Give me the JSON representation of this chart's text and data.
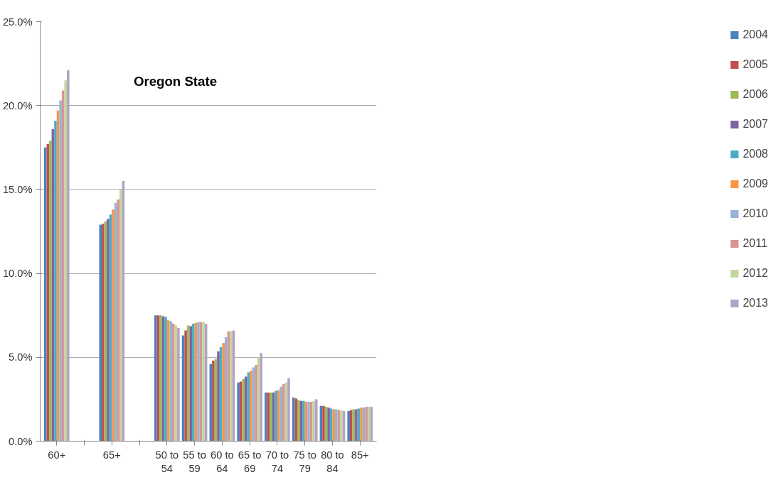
{
  "chart_data": {
    "type": "bar",
    "title": "Oregon State",
    "categories": [
      "60+",
      null,
      "65+",
      null,
      "50 to 54",
      "55 to 59",
      "60 to 64",
      "65 to 69",
      "70 to 74",
      "75 to 79",
      "80 to 84",
      "85+"
    ],
    "ylim": [
      0,
      25
    ],
    "yticks": [
      {
        "value": 0,
        "label": "0.0%"
      },
      {
        "value": 5,
        "label": "5.0%"
      },
      {
        "value": 10,
        "label": "10.0%"
      },
      {
        "value": 15,
        "label": "15.0%"
      },
      {
        "value": 20,
        "label": "20.0%"
      },
      {
        "value": 25,
        "label": "25.0%"
      }
    ],
    "grid": "y",
    "legend": "right",
    "series": [
      {
        "name": "2004",
        "color": "#4f81bd",
        "values": [
          17.5,
          null,
          12.9,
          null,
          7.5,
          6.3,
          4.6,
          3.5,
          2.9,
          2.6,
          2.1,
          1.8
        ]
      },
      {
        "name": "2005",
        "color": "#c0504d",
        "values": [
          17.7,
          null,
          12.95,
          null,
          7.5,
          6.6,
          4.8,
          3.55,
          2.9,
          2.55,
          2.1,
          1.85
        ]
      },
      {
        "name": "2006",
        "color": "#9bbb59",
        "values": [
          17.9,
          null,
          13.1,
          null,
          7.5,
          6.9,
          4.9,
          3.7,
          2.9,
          2.45,
          2.05,
          1.9
        ]
      },
      {
        "name": "2007",
        "color": "#8064a2",
        "values": [
          18.6,
          null,
          13.25,
          null,
          7.45,
          6.85,
          5.35,
          3.85,
          2.9,
          2.4,
          2.0,
          1.9
        ]
      },
      {
        "name": "2008",
        "color": "#4bacc6",
        "values": [
          19.1,
          null,
          13.5,
          null,
          7.4,
          7.0,
          5.6,
          4.1,
          3.0,
          2.4,
          1.95,
          1.95
        ]
      },
      {
        "name": "2009",
        "color": "#f79646",
        "values": [
          19.7,
          null,
          13.8,
          null,
          7.2,
          7.05,
          5.85,
          4.2,
          3.05,
          2.35,
          1.9,
          2.0
        ]
      },
      {
        "name": "2010",
        "color": "#95b3d7",
        "values": [
          20.3,
          null,
          14.2,
          null,
          7.15,
          7.1,
          6.2,
          4.4,
          3.25,
          2.35,
          1.9,
          2.0
        ]
      },
      {
        "name": "2011",
        "color": "#d99694",
        "values": [
          20.9,
          null,
          14.4,
          null,
          7.0,
          7.1,
          6.55,
          4.55,
          3.4,
          2.35,
          1.85,
          2.05
        ]
      },
      {
        "name": "2012",
        "color": "#c3d69b",
        "values": [
          21.5,
          null,
          15.0,
          null,
          6.9,
          7.1,
          6.55,
          5.0,
          3.5,
          2.4,
          1.85,
          2.05
        ]
      },
      {
        "name": "2013",
        "color": "#b3a2c7",
        "values": [
          22.1,
          null,
          15.5,
          null,
          6.75,
          7.0,
          6.6,
          5.25,
          3.75,
          2.5,
          1.8,
          2.05
        ]
      }
    ]
  }
}
